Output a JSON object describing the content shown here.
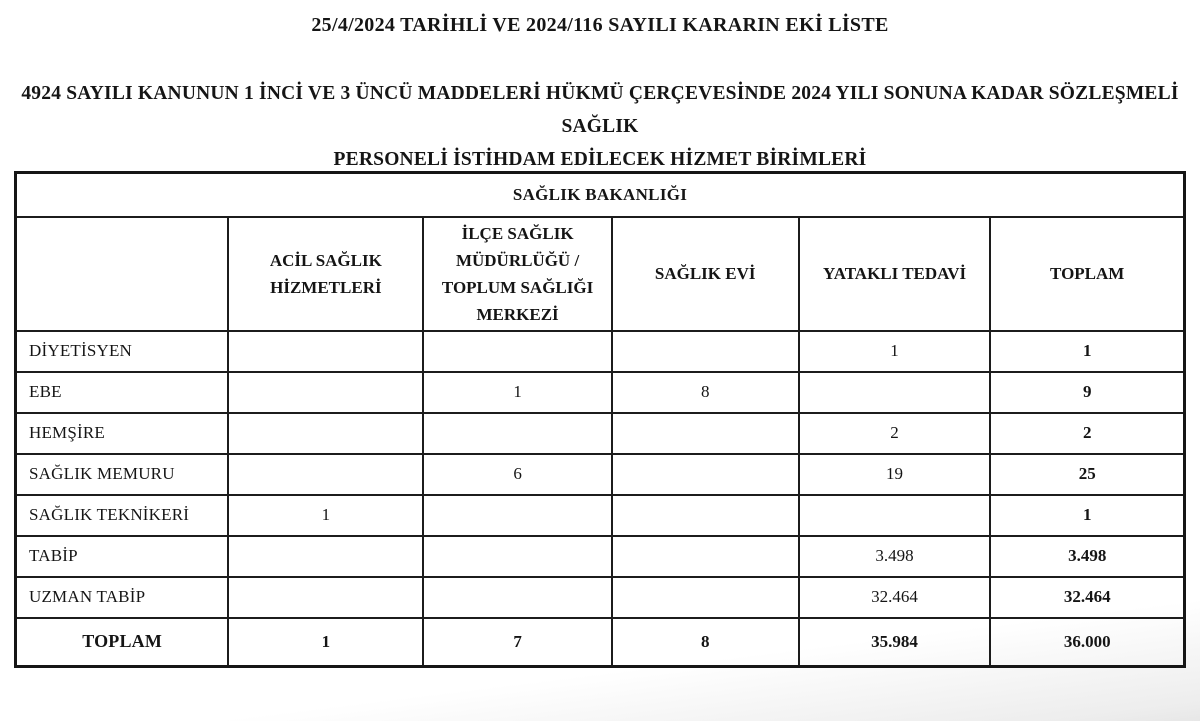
{
  "document": {
    "title": "25/4/2024 TARİHLİ VE 2024/116 SAYILI KARARIN EKİ LİSTE",
    "subtitle_line1": "4924 SAYILI KANUNUN 1 İNCİ VE 3 ÜNCÜ MADDELERİ  HÜKMÜ ÇERÇEVESİNDE 2024 YILI SONUNA KADAR SÖZLEŞMELİ SAĞLIK",
    "subtitle_line2": "PERSONELİ İSTİHDAM EDİLECEK HİZMET BİRİMLERİ"
  },
  "table": {
    "caption": "SAĞLIK BAKANLIĞI",
    "column_headers": [
      "",
      "ACİL SAĞLIK HİZMETLERİ",
      "İLÇE SAĞLIK MÜDÜRLÜĞÜ / TOPLUM SAĞLIĞI MERKEZİ",
      "SAĞLIK EVİ",
      "YATAKLI TEDAVİ",
      "TOPLAM"
    ],
    "rows": [
      {
        "label": "DİYETİSYEN",
        "values": [
          "",
          "",
          "",
          "1",
          "1"
        ]
      },
      {
        "label": "EBE",
        "values": [
          "",
          "1",
          "8",
          "",
          "9"
        ]
      },
      {
        "label": "HEMŞİRE",
        "values": [
          "",
          "",
          "",
          "2",
          "2"
        ]
      },
      {
        "label": "SAĞLIK MEMURU",
        "values": [
          "",
          "6",
          "",
          "19",
          "25"
        ]
      },
      {
        "label": "SAĞLIK TEKNİKERİ",
        "values": [
          "1",
          "",
          "",
          "",
          "1"
        ]
      },
      {
        "label": "TABİP",
        "values": [
          "",
          "",
          "",
          "3.498",
          "3.498"
        ]
      },
      {
        "label": "UZMAN TABİP",
        "values": [
          "",
          "",
          "",
          "32.464",
          "32.464"
        ]
      }
    ],
    "total_row": {
      "label": "TOPLAM",
      "values": [
        "1",
        "7",
        "8",
        "35.984",
        "36.000"
      ]
    }
  },
  "colors": {
    "text": "#151515",
    "table_border": "#1c1c1c",
    "page_background": "#ffffff",
    "bottom_shade": "#e7e7e7"
  }
}
